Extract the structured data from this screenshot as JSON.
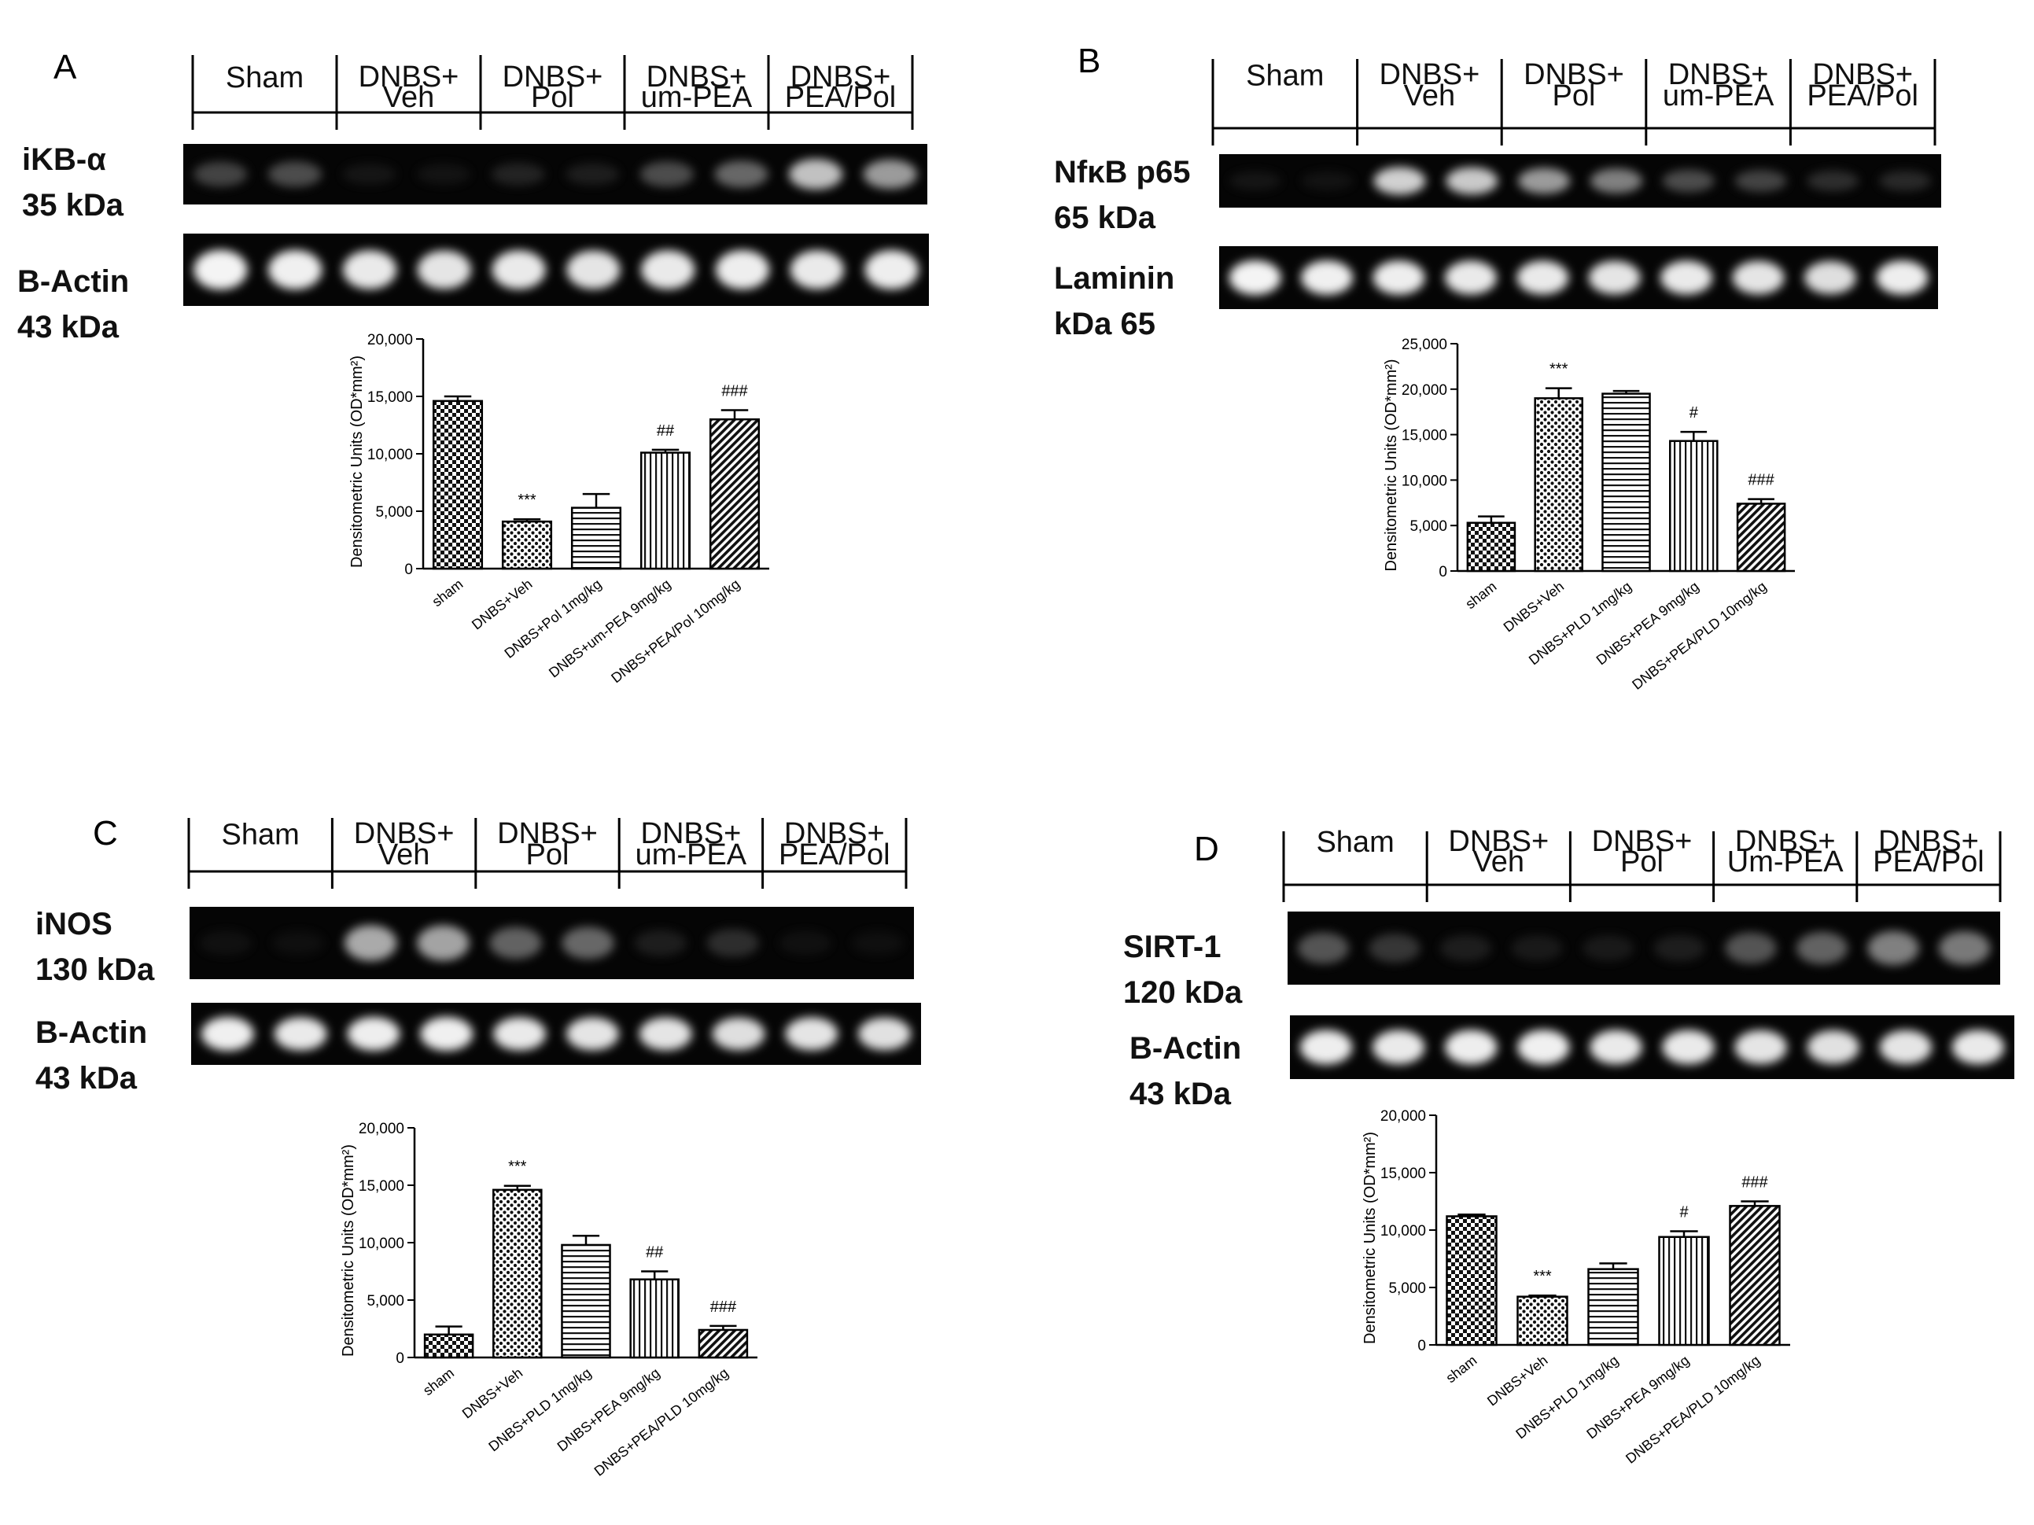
{
  "chart_data": [
    {
      "panel": "A",
      "type": "bar",
      "lanes": [
        "Sham",
        "DNBS+\nVeh",
        "DNBS+\nPol",
        "DNBS+\num-PEA",
        "DNBS+\nPEA/Pol"
      ],
      "blots": [
        {
          "label": "iKB-α\n35 kDa",
          "intensities": [
            0.38,
            0.42,
            0.12,
            0.1,
            0.22,
            0.18,
            0.42,
            0.52,
            0.78,
            0.68
          ]
        },
        {
          "label": "B-Actin\n43 kDa",
          "intensities": [
            0.95,
            0.93,
            0.9,
            0.88,
            0.9,
            0.88,
            0.9,
            0.92,
            0.9,
            0.92
          ]
        }
      ],
      "ylabel": "Densitometric Units (OD*mm²)",
      "ylim": [
        0,
        20000
      ],
      "yticks": [
        "0",
        "5,000",
        "10,000",
        "15,000",
        "20,000"
      ],
      "categories": [
        "sham",
        "DNBS+Veh",
        "DNBS+Pol 1mg/kg",
        "DNBS+um-PEA 9mg/kg",
        "DNBS+PEA/Pol 10mg/kg"
      ],
      "values": [
        14600,
        4100,
        5300,
        10100,
        13000
      ],
      "errors": [
        400,
        200,
        1200,
        250,
        800
      ],
      "significance": [
        "",
        "***",
        "",
        "##",
        "###"
      ],
      "patterns": [
        "checker",
        "dots",
        "hlines",
        "vlines",
        "diag"
      ]
    },
    {
      "panel": "B",
      "type": "bar",
      "lanes": [
        "Sham",
        "DNBS+\nVeh",
        "DNBS+\nPol",
        "DNBS+\num-PEA",
        "DNBS+\nPEA/Pol"
      ],
      "blots": [
        {
          "label": "NfκB p65\n65 kDa",
          "intensities": [
            0.12,
            0.1,
            0.82,
            0.8,
            0.68,
            0.6,
            0.42,
            0.38,
            0.28,
            0.25
          ]
        },
        {
          "label": "Laminin\nkDa 65",
          "intensities": [
            0.95,
            0.93,
            0.92,
            0.9,
            0.9,
            0.88,
            0.9,
            0.88,
            0.85,
            0.92
          ]
        }
      ],
      "ylabel": "Densitometric Units (OD*mm²)",
      "ylim": [
        0,
        25000
      ],
      "yticks": [
        "0",
        "5,000",
        "10,000",
        "15,000",
        "20,000",
        "25,000"
      ],
      "categories": [
        "sham",
        "DNBS+Veh",
        "DNBS+PLD 1mg/kg",
        "DNBS+PEA 9mg/kg",
        "DNBS+PEA/PLD 10mg/kg"
      ],
      "values": [
        5300,
        19000,
        19500,
        14300,
        7400
      ],
      "errors": [
        700,
        1100,
        300,
        1000,
        500
      ],
      "significance": [
        "",
        "***",
        "",
        "#",
        "###"
      ],
      "patterns": [
        "checker",
        "dots",
        "hlines",
        "vlines",
        "diag"
      ]
    },
    {
      "panel": "C",
      "type": "bar",
      "lanes": [
        "Sham",
        "DNBS+\nVeh",
        "DNBS+\nPol",
        "DNBS+\num-PEA",
        "DNBS+\nPEA/Pol"
      ],
      "blots": [
        {
          "label": "iNOS\n130 kDa",
          "intensities": [
            0.08,
            0.06,
            0.72,
            0.7,
            0.5,
            0.52,
            0.18,
            0.28,
            0.08,
            0.06
          ]
        },
        {
          "label": "B-Actin\n43 kDa",
          "intensities": [
            0.93,
            0.9,
            0.92,
            0.93,
            0.9,
            0.88,
            0.88,
            0.85,
            0.88,
            0.86
          ]
        }
      ],
      "ylabel": "Densitometric Units (OD*mm²)",
      "ylim": [
        0,
        20000
      ],
      "yticks": [
        "0",
        "5,000",
        "10,000",
        "15,000",
        "20,000"
      ],
      "categories": [
        "sham",
        "DNBS+Veh",
        "DNBS+PLD 1mg/kg",
        "DNBS+PEA 9mg/kg",
        "DNBS+PEA/PLD 10mg/kg"
      ],
      "values": [
        2000,
        14600,
        9800,
        6800,
        2400
      ],
      "errors": [
        700,
        350,
        800,
        700,
        350
      ],
      "significance": [
        "",
        "***",
        "",
        "##",
        "###"
      ],
      "patterns": [
        "checker",
        "dots",
        "hlines",
        "vlines",
        "diag"
      ]
    },
    {
      "panel": "D",
      "type": "bar",
      "lanes": [
        "Sham",
        "DNBS+\nVeh",
        "DNBS+\nPol",
        "DNBS+\nUm-PEA",
        "DNBS+\nPEA/Pol"
      ],
      "blots": [
        {
          "label": "SIRT-1\n120 kDa",
          "intensities": [
            0.45,
            0.32,
            0.18,
            0.15,
            0.15,
            0.18,
            0.45,
            0.5,
            0.6,
            0.58
          ]
        },
        {
          "label": "B-Actin\n43 kDa",
          "intensities": [
            0.92,
            0.9,
            0.92,
            0.93,
            0.9,
            0.9,
            0.88,
            0.86,
            0.88,
            0.9
          ]
        }
      ],
      "ylabel": "Densitometric Units (OD*mm²)",
      "ylim": [
        0,
        20000
      ],
      "yticks": [
        "0",
        "5,000",
        "10,000",
        "15,000",
        "20,000"
      ],
      "categories": [
        "sham",
        "DNBS+Veh",
        "DNBS+PLD 1mg/kg",
        "DNBS+PEA 9mg/kg",
        "DNBS+PEA/PLD 10mg/kg"
      ],
      "values": [
        11200,
        4200,
        6600,
        9400,
        12100
      ],
      "errors": [
        150,
        100,
        500,
        500,
        400
      ],
      "significance": [
        "",
        "***",
        "",
        "#",
        "###"
      ],
      "patterns": [
        "checker",
        "dots",
        "hlines",
        "vlines",
        "diag"
      ]
    }
  ]
}
